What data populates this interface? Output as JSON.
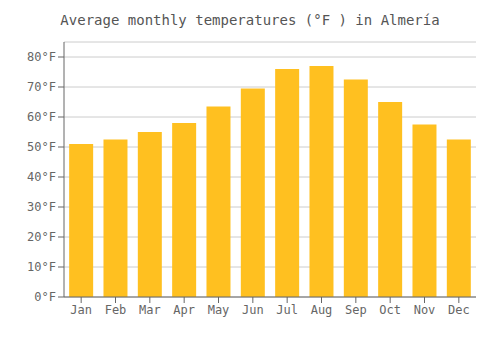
{
  "chart_data": {
    "type": "bar",
    "title": "Average monthly temperatures (°F ) in Almería",
    "categories": [
      "Jan",
      "Feb",
      "Mar",
      "Apr",
      "May",
      "Jun",
      "Jul",
      "Aug",
      "Sep",
      "Oct",
      "Nov",
      "Dec"
    ],
    "values": [
      51,
      52.5,
      55,
      58,
      63.5,
      69.5,
      76,
      77,
      72.5,
      65,
      57.5,
      52.5
    ],
    "color": "#FFC020",
    "ylim": [
      0,
      85
    ],
    "yticks": [
      {
        "value": 0,
        "label": "0°F"
      },
      {
        "value": 10,
        "label": "10°F"
      },
      {
        "value": 20,
        "label": "20°F"
      },
      {
        "value": 30,
        "label": "30°F"
      },
      {
        "value": 40,
        "label": "40°F"
      },
      {
        "value": 50,
        "label": "50°F"
      },
      {
        "value": 60,
        "label": "60°F"
      },
      {
        "value": 70,
        "label": "70°F"
      },
      {
        "value": 80,
        "label": "80°F"
      }
    ],
    "grid": true
  }
}
